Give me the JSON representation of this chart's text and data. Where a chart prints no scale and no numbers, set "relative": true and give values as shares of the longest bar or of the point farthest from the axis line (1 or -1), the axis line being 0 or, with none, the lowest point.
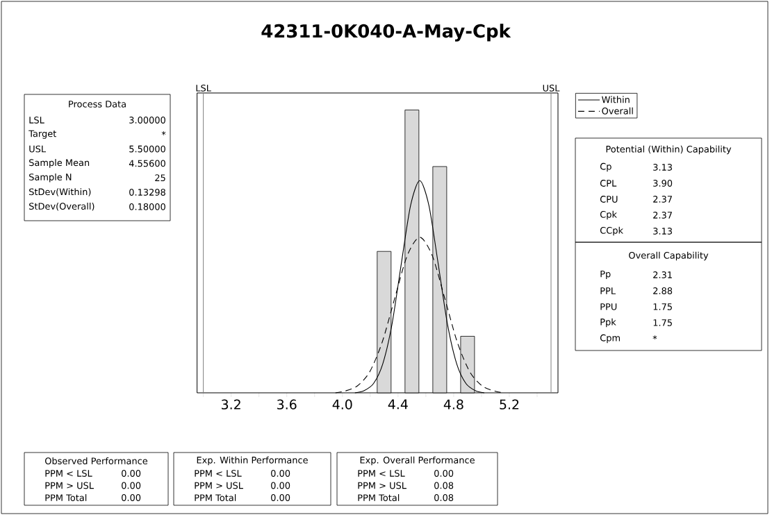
{
  "chart_data": {
    "type": "histogram",
    "title": "42311-0K040-A-May-Cpk",
    "relative": true,
    "bins": [
      4.25,
      4.35,
      4.45,
      4.55,
      4.65,
      4.75,
      4.85,
      4.95
    ],
    "values": [
      0.5,
      0,
      1,
      0,
      0.8,
      0,
      0.2
    ],
    "color": "#d9d9d9",
    "series": [
      {
        "name": "Within",
        "type": "line",
        "color": "#000000",
        "line_style": "solid",
        "x": [
          4.09,
          4.157,
          4.224,
          4.29,
          4.357,
          4.423,
          4.49,
          4.556,
          4.622,
          4.689,
          4.755,
          4.822,
          4.888,
          4.955,
          5.02
        ],
        "values": [
          0,
          0.008,
          0.033,
          0.102,
          0.244,
          0.455,
          0.662,
          0.75,
          0.662,
          0.455,
          0.244,
          0.102,
          0.033,
          0.008,
          0
        ]
      },
      {
        "name": "Overall",
        "type": "line",
        "color": "#000000",
        "line_style": "dashed",
        "x": [
          3.95,
          4.016,
          4.106,
          4.196,
          4.286,
          4.376,
          4.466,
          4.556,
          4.646,
          4.736,
          4.826,
          4.916,
          5.006,
          5.096,
          5.16
        ],
        "values": [
          0,
          0.006,
          0.024,
          0.074,
          0.179,
          0.334,
          0.485,
          0.55,
          0.485,
          0.334,
          0.179,
          0.074,
          0.024,
          0.006,
          0
        ]
      }
    ],
    "xlim": [
      2.955,
      5.55
    ],
    "xticks": [
      {
        "value": 3.0,
        "label": null
      },
      3.2,
      {
        "value": 3.4,
        "label": null
      },
      3.6,
      {
        "value": 3.8,
        "label": null
      },
      {
        "value": 4.0,
        "label": "4.0"
      },
      {
        "value": 4.2,
        "label": null
      },
      4.4,
      {
        "value": 4.6,
        "label": null
      },
      4.8,
      {
        "value": 5.0,
        "label": null
      },
      5.2,
      {
        "value": 5.4,
        "label": null
      }
    ],
    "ref_lines": [
      {
        "axis": "x",
        "value": 3.0,
        "label": "LSL",
        "color": "#808080"
      },
      {
        "axis": "x",
        "value": 5.5,
        "label": "USL",
        "color": "#808080"
      }
    ],
    "legend": "right",
    "annotations": [
      "Process Data",
      "LSL",
      "3.00000",
      "Target",
      "*",
      "USL",
      "5.50000",
      "Sample Mean",
      "4.55600",
      "Sample N",
      "25",
      "StDev(Within)",
      "0.13298",
      "StDev(Overall)",
      "0.18000",
      "Potential (Within) Capability",
      "Cp",
      "3.13",
      "CPL",
      "3.90",
      "CPU",
      "2.37",
      "Cpk",
      "2.37",
      "CCpk",
      "3.13",
      "Overall Capability",
      "Pp",
      "2.31",
      "PPL",
      "2.88",
      "PPU",
      "1.75",
      "Ppk",
      "1.75",
      "Cpm",
      "*",
      "Observed Performance",
      "PPM < LSL",
      "0.00",
      "PPM > USL",
      "0.00",
      "PPM Total",
      "0.00",
      "Exp. Within Performance",
      "PPM < LSL",
      "0.00",
      "PPM > USL",
      "0.00",
      "PPM Total",
      "0.00",
      "Exp. Overall Performance",
      "PPM < LSL",
      "0.00",
      "PPM > USL",
      "0.08",
      "PPM Total",
      "0.08"
    ]
  }
}
